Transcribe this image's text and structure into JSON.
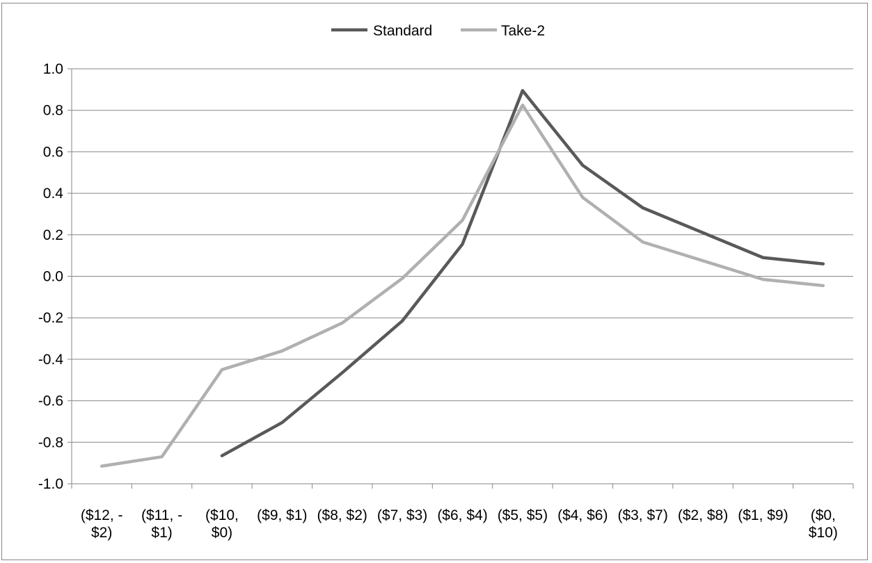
{
  "chart_data": {
    "type": "line",
    "title": "",
    "xlabel": "",
    "ylabel": "",
    "categories": [
      [
        "($12, -",
        "$2)"
      ],
      [
        "($11, -",
        "$1)"
      ],
      [
        "($10,",
        "$0)"
      ],
      [
        "($9, $1)"
      ],
      [
        "($8, $2)"
      ],
      [
        "($7, $3)"
      ],
      [
        "($6, $4)"
      ],
      [
        "($5, $5)"
      ],
      [
        "($4, $6)"
      ],
      [
        "($3, $7)"
      ],
      [
        "($2, $8)"
      ],
      [
        "($1, $9)"
      ],
      [
        "($0,",
        "$10)"
      ]
    ],
    "ylim": [
      -1.0,
      1.0
    ],
    "yticks": [
      1.0,
      0.8,
      0.6,
      0.4,
      0.2,
      0.0,
      -0.2,
      -0.4,
      -0.6,
      -0.8,
      -1.0
    ],
    "ytick_labels": [
      "1.0",
      "0.8",
      "0.6",
      "0.4",
      "0.2",
      "0.0",
      "-0.2",
      "-0.4",
      "-0.6",
      "-0.8",
      "-1.0"
    ],
    "grid": "horizontal",
    "legend_position": "top-center",
    "series": [
      {
        "name": "Standard",
        "color": "#595959",
        "values": [
          null,
          null,
          -0.865,
          -0.705,
          -0.465,
          -0.215,
          0.155,
          0.895,
          0.535,
          0.33,
          0.21,
          0.09,
          0.06
        ]
      },
      {
        "name": "Take-2",
        "color": "#b0b0b0",
        "values": [
          -0.915,
          -0.87,
          -0.45,
          -0.36,
          -0.225,
          -0.01,
          0.27,
          0.825,
          0.38,
          0.165,
          0.075,
          -0.015,
          -0.045
        ]
      }
    ]
  }
}
